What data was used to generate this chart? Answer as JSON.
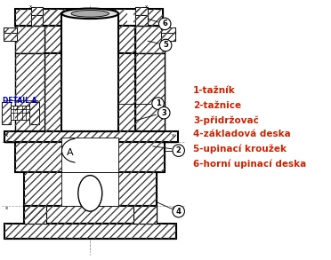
{
  "bg_color": "#ffffff",
  "line_color": "#000000",
  "legend_color": "#cc2200",
  "detail_color": "#0000bb",
  "legend_items": [
    "1-tažník",
    "2-tažnice",
    "3-přidržovač",
    "4-základová deska",
    "5-upinací kroužek",
    "6-horní upinací deska"
  ],
  "detail_label": "DETAIL A",
  "label_A": "A",
  "hatch_pat": "////"
}
